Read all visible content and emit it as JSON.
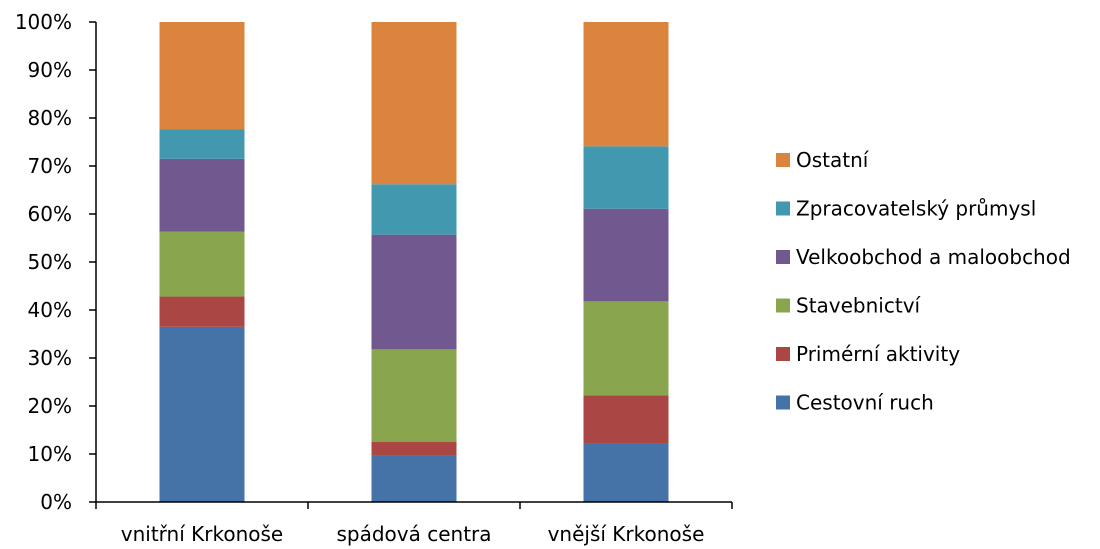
{
  "chart_data": {
    "type": "bar",
    "stacked": "percent",
    "categories": [
      "vnitřní Krkonoše",
      "spádová centra",
      "vnější Krkonoše"
    ],
    "series": [
      {
        "name": "Cestovní ruch",
        "color": "#4572A7",
        "values": [
          36.5,
          9.7,
          12.2
        ]
      },
      {
        "name": "Primérní aktivity",
        "color": "#AA4643",
        "values": [
          6.3,
          2.8,
          10.0
        ]
      },
      {
        "name": "Stavebnictví",
        "color": "#89A54E",
        "values": [
          13.5,
          19.3,
          19.6
        ]
      },
      {
        "name": "Velkoobchod a maloobchod",
        "color": "#71588F",
        "values": [
          15.2,
          23.9,
          19.3
        ]
      },
      {
        "name": "Zpracovatelský průmysl",
        "color": "#4198AF",
        "values": [
          6.1,
          10.5,
          13.0
        ]
      },
      {
        "name": "Ostatní",
        "color": "#DB843D",
        "values": [
          22.4,
          33.8,
          25.9
        ]
      }
    ],
    "y_ticks": [
      "0%",
      "10%",
      "20%",
      "30%",
      "40%",
      "50%",
      "60%",
      "70%",
      "80%",
      "90%",
      "100%"
    ],
    "ylim": [
      0,
      100
    ],
    "grid": false,
    "legend_position": "right"
  }
}
